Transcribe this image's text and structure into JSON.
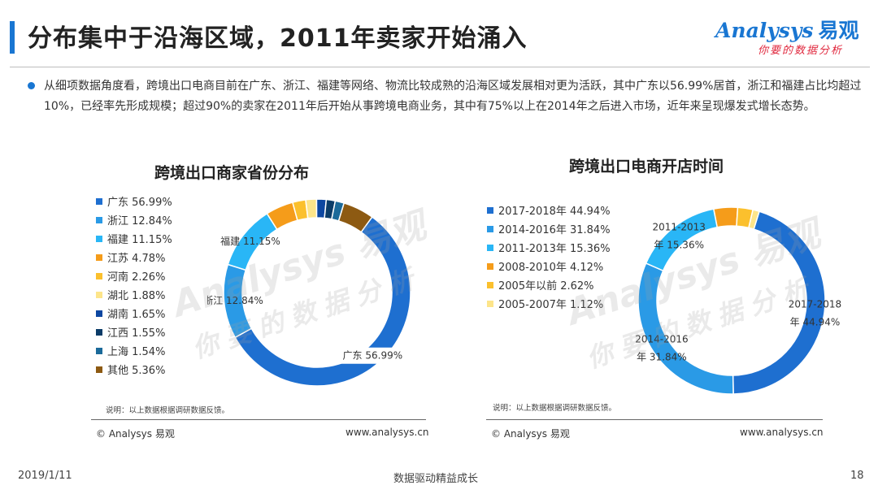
{
  "header": {
    "title": "分布集中于沿海区域，2011年卖家开始涌入",
    "logo_text": "Analysys",
    "logo_cn": "易观",
    "logo_slogan": "你要的数据分析"
  },
  "summary": "从细项数据角度看，跨境出口电商目前在广东、浙江、福建等网络、物流比较成熟的沿海区域发展相对更为活跃，其中广东以56.99%居首，浙江和福建占比均超过10%，已经率先形成规模；超过90%的卖家在2011年后开始从事跨境电商业务，其中有75%以上在2014年之后进入市场，近年来呈现爆发式增长态势。",
  "watermark": {
    "brand": "Analysys 易观",
    "slogan": "你要的数据分析"
  },
  "panels": [
    {
      "note": "说明：以上数据根据调研数据反馈。",
      "copyright": "© Analysys 易观",
      "site": "www.analysys.cn"
    },
    {
      "note": "说明：以上数据根据调研数据反馈。",
      "copyright": "© Analysys 易观",
      "site": "www.analysys.cn"
    }
  ],
  "footer": {
    "date": "2019/1/11",
    "slogan": "数据驱动精益成长",
    "page": "18"
  },
  "chart_data": [
    {
      "type": "pie",
      "donut": true,
      "title": "跨境出口商家省份分布",
      "legend_position": "left",
      "slices": [
        {
          "name": "广东",
          "value": 56.99,
          "legend": "广东  56.99%",
          "label": "广东 56.99%",
          "color": "#1e6fd0"
        },
        {
          "name": "浙江",
          "value": 12.84,
          "legend": "浙江  12.84%",
          "label": "浙江 12.84%",
          "color": "#2a9ae6"
        },
        {
          "name": "福建",
          "value": 11.15,
          "legend": "福建  11.15%",
          "label": "福建 11.15%",
          "color": "#29b6f6"
        },
        {
          "name": "江苏",
          "value": 4.78,
          "legend": "江苏  4.78%",
          "label": "",
          "color": "#f59c1a"
        },
        {
          "name": "河南",
          "value": 2.26,
          "legend": "河南  2.26%",
          "label": "",
          "color": "#fbc02d"
        },
        {
          "name": "湖北",
          "value": 1.88,
          "legend": "湖北  1.88%",
          "label": "",
          "color": "#fde58a"
        },
        {
          "name": "湖南",
          "value": 1.65,
          "legend": "湖南  1.65%",
          "label": "",
          "color": "#0d47a1"
        },
        {
          "name": "江西",
          "value": 1.55,
          "legend": "江西  1.55%",
          "label": "",
          "color": "#0b3c68"
        },
        {
          "name": "上海",
          "value": 1.54,
          "legend": "上海  1.54%",
          "label": "",
          "color": "#1b6a9a"
        },
        {
          "name": "其他",
          "value": 5.36,
          "legend": "其他  5.36%",
          "label": "",
          "color": "#8d5a12"
        }
      ]
    },
    {
      "type": "pie",
      "donut": true,
      "title": "跨境出口电商开店时间",
      "legend_position": "left",
      "slices": [
        {
          "name": "2017-2018年",
          "value": 44.94,
          "legend": "2017-2018年  44.94%",
          "label_lines": [
            "2017-2018",
            "年  44.94%"
          ],
          "color": "#1e6fd0"
        },
        {
          "name": "2014-2016年",
          "value": 31.84,
          "legend": "2014-2016年  31.84%",
          "label_lines": [
            "2014-2016",
            "年  31.84%"
          ],
          "color": "#2a9ae6"
        },
        {
          "name": "2011-2013年",
          "value": 15.36,
          "legend": "2011-2013年  15.36%",
          "label_lines": [
            "2011-2013",
            "年  15.36%"
          ],
          "color": "#29b6f6"
        },
        {
          "name": "2008-2010年",
          "value": 4.12,
          "legend": "2008-2010年  4.12%",
          "label_lines": [],
          "color": "#f59c1a"
        },
        {
          "name": "2005年以前",
          "value": 2.62,
          "legend": "2005年以前  2.62%",
          "label_lines": [],
          "color": "#fbc02d"
        },
        {
          "name": "2005-2007年",
          "value": 1.12,
          "legend": "2005-2007年  1.12%",
          "label_lines": [],
          "color": "#fde58a"
        }
      ]
    }
  ]
}
